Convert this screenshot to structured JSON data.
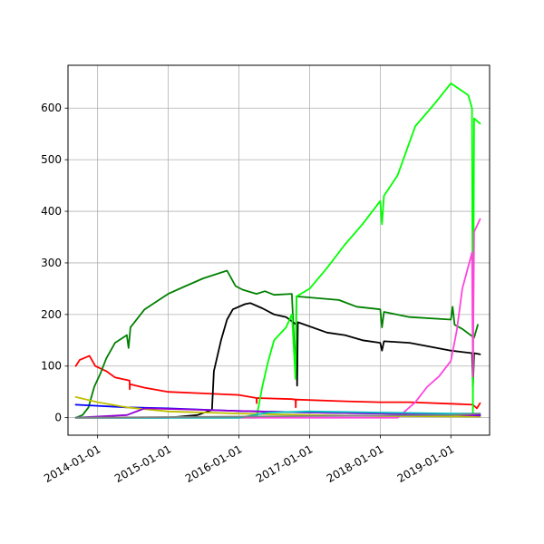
{
  "chart_data": {
    "type": "line",
    "grid": true,
    "xlim": [
      "2013-08-01",
      "2019-07-20"
    ],
    "ylim": [
      -34,
      683
    ],
    "x_ticks": [
      "2014-01-01",
      "2015-01-01",
      "2016-01-01",
      "2017-01-01",
      "2018-01-01",
      "2019-01-01"
    ],
    "y_ticks": [
      0,
      100,
      200,
      300,
      400,
      500,
      600
    ],
    "series": [
      {
        "color": "#ff0000",
        "points": [
          [
            "2013-09-10",
            100
          ],
          [
            "2013-10-01",
            112
          ],
          [
            "2013-11-20",
            120
          ],
          [
            "2013-12-20",
            100
          ],
          [
            "2014-02-15",
            90
          ],
          [
            "2014-04-01",
            78
          ],
          [
            "2014-06-15",
            72
          ],
          [
            "2014-06-16",
            55
          ],
          [
            "2014-06-17",
            65
          ],
          [
            "2014-09-01",
            58
          ],
          [
            "2015-01-01",
            50
          ],
          [
            "2015-07-01",
            47
          ],
          [
            "2016-01-01",
            44
          ],
          [
            "2016-04-01",
            38
          ],
          [
            "2016-04-02",
            28
          ],
          [
            "2016-04-03",
            38
          ],
          [
            "2016-10-01",
            36
          ],
          [
            "2016-10-20",
            35
          ],
          [
            "2016-10-21",
            20
          ],
          [
            "2016-10-22",
            35
          ],
          [
            "2017-06-01",
            32
          ],
          [
            "2018-01-01",
            30
          ],
          [
            "2018-06-01",
            30
          ],
          [
            "2019-01-01",
            27
          ],
          [
            "2019-04-25",
            25
          ],
          [
            "2019-05-15",
            18
          ],
          [
            "2019-06-01",
            28
          ]
        ]
      },
      {
        "color": "#008000",
        "points": [
          [
            "2013-09-10",
            0
          ],
          [
            "2013-10-15",
            5
          ],
          [
            "2013-11-15",
            20
          ],
          [
            "2013-12-15",
            60
          ],
          [
            "2014-01-15",
            85
          ],
          [
            "2014-02-15",
            115
          ],
          [
            "2014-04-01",
            145
          ],
          [
            "2014-06-01",
            160
          ],
          [
            "2014-06-10",
            135
          ],
          [
            "2014-06-20",
            175
          ],
          [
            "2014-09-01",
            210
          ],
          [
            "2015-01-01",
            240
          ],
          [
            "2015-04-01",
            255
          ],
          [
            "2015-07-01",
            270
          ],
          [
            "2015-11-01",
            285
          ],
          [
            "2015-12-15",
            255
          ],
          [
            "2016-01-20",
            248
          ],
          [
            "2016-04-01",
            240
          ],
          [
            "2016-05-15",
            245
          ],
          [
            "2016-07-01",
            238
          ],
          [
            "2016-10-01",
            240
          ],
          [
            "2016-10-20",
            80
          ],
          [
            "2016-10-25",
            235
          ],
          [
            "2017-06-01",
            228
          ],
          [
            "2017-09-01",
            215
          ],
          [
            "2018-01-01",
            210
          ],
          [
            "2018-01-10",
            175
          ],
          [
            "2018-01-20",
            205
          ],
          [
            "2018-06-01",
            195
          ],
          [
            "2019-01-01",
            190
          ],
          [
            "2019-01-10",
            215
          ],
          [
            "2019-01-20",
            180
          ],
          [
            "2019-03-01",
            172
          ],
          [
            "2019-05-01",
            155
          ],
          [
            "2019-05-20",
            180
          ]
        ]
      },
      {
        "color": "#000000",
        "points": [
          [
            "2013-09-10",
            0
          ],
          [
            "2015-01-01",
            0
          ],
          [
            "2015-06-01",
            5
          ],
          [
            "2015-08-15",
            15
          ],
          [
            "2015-08-25",
            90
          ],
          [
            "2015-10-01",
            150
          ],
          [
            "2015-11-01",
            190
          ],
          [
            "2015-12-01",
            210
          ],
          [
            "2016-02-01",
            220
          ],
          [
            "2016-03-01",
            222
          ],
          [
            "2016-05-01",
            212
          ],
          [
            "2016-07-01",
            200
          ],
          [
            "2016-09-01",
            195
          ],
          [
            "2016-10-25",
            180
          ],
          [
            "2016-10-28",
            62
          ],
          [
            "2016-11-01",
            185
          ],
          [
            "2017-04-01",
            165
          ],
          [
            "2017-07-01",
            160
          ],
          [
            "2017-10-01",
            150
          ],
          [
            "2018-01-01",
            145
          ],
          [
            "2018-01-10",
            130
          ],
          [
            "2018-01-20",
            148
          ],
          [
            "2018-06-01",
            145
          ],
          [
            "2019-01-01",
            130
          ],
          [
            "2019-04-20",
            125
          ],
          [
            "2019-04-25",
            60
          ],
          [
            "2019-05-01",
            125
          ],
          [
            "2019-06-01",
            123
          ]
        ]
      },
      {
        "color": "#00ff00",
        "points": [
          [
            "2013-09-10",
            0
          ],
          [
            "2016-04-01",
            0
          ],
          [
            "2016-05-01",
            60
          ],
          [
            "2016-06-01",
            110
          ],
          [
            "2016-07-01",
            150
          ],
          [
            "2016-09-01",
            175
          ],
          [
            "2016-10-01",
            200
          ],
          [
            "2016-10-20",
            75
          ],
          [
            "2016-10-25",
            235
          ],
          [
            "2017-01-01",
            250
          ],
          [
            "2017-04-01",
            290
          ],
          [
            "2017-07-01",
            335
          ],
          [
            "2017-10-01",
            375
          ],
          [
            "2018-01-01",
            420
          ],
          [
            "2018-01-10",
            375
          ],
          [
            "2018-01-20",
            430
          ],
          [
            "2018-04-01",
            470
          ],
          [
            "2018-07-01",
            565
          ],
          [
            "2018-10-01",
            605
          ],
          [
            "2019-01-01",
            648
          ],
          [
            "2019-04-01",
            625
          ],
          [
            "2019-04-20",
            600
          ],
          [
            "2019-04-25",
            10
          ],
          [
            "2019-05-01",
            580
          ],
          [
            "2019-06-01",
            570
          ]
        ]
      },
      {
        "color": "#ff44dd",
        "points": [
          [
            "2013-09-10",
            0
          ],
          [
            "2018-04-01",
            0
          ],
          [
            "2018-07-01",
            30
          ],
          [
            "2018-09-01",
            60
          ],
          [
            "2018-11-01",
            80
          ],
          [
            "2019-01-01",
            110
          ],
          [
            "2019-02-01",
            170
          ],
          [
            "2019-03-01",
            250
          ],
          [
            "2019-04-20",
            320
          ],
          [
            "2019-04-25",
            80
          ],
          [
            "2019-05-01",
            360
          ],
          [
            "2019-06-01",
            385
          ]
        ]
      },
      {
        "color": "#0000ff",
        "points": [
          [
            "2013-09-10",
            25
          ],
          [
            "2014-01-01",
            23
          ],
          [
            "2014-06-01",
            20
          ],
          [
            "2015-01-01",
            18
          ],
          [
            "2016-01-01",
            13
          ],
          [
            "2017-01-01",
            10
          ],
          [
            "2018-01-01",
            8
          ],
          [
            "2019-01-01",
            6
          ],
          [
            "2019-06-01",
            5
          ]
        ]
      },
      {
        "color": "#bfbf00",
        "points": [
          [
            "2013-09-10",
            40
          ],
          [
            "2014-01-01",
            30
          ],
          [
            "2014-06-01",
            20
          ],
          [
            "2015-01-01",
            12
          ],
          [
            "2016-01-01",
            8
          ],
          [
            "2017-01-01",
            5
          ],
          [
            "2018-01-01",
            3
          ],
          [
            "2019-06-01",
            2
          ]
        ]
      },
      {
        "color": "#9400d3",
        "points": [
          [
            "2013-09-10",
            0
          ],
          [
            "2014-06-01",
            5
          ],
          [
            "2014-09-01",
            18
          ],
          [
            "2015-04-01",
            16
          ],
          [
            "2016-01-01",
            13
          ],
          [
            "2017-01-01",
            10
          ],
          [
            "2018-01-01",
            8
          ],
          [
            "2019-01-01",
            6
          ],
          [
            "2019-06-01",
            4
          ]
        ]
      },
      {
        "color": "#00bfbf",
        "points": [
          [
            "2013-09-10",
            0
          ],
          [
            "2016-01-01",
            0
          ],
          [
            "2016-06-01",
            10
          ],
          [
            "2017-01-01",
            12
          ],
          [
            "2018-01-01",
            10
          ],
          [
            "2019-01-01",
            8
          ],
          [
            "2019-06-01",
            8
          ]
        ]
      },
      {
        "color": "#808080",
        "points": [
          [
            "2013-09-10",
            0
          ],
          [
            "2016-01-01",
            2
          ],
          [
            "2017-01-01",
            3
          ],
          [
            "2018-01-01",
            4
          ],
          [
            "2019-01-01",
            5
          ],
          [
            "2019-06-01",
            8
          ]
        ]
      }
    ]
  }
}
